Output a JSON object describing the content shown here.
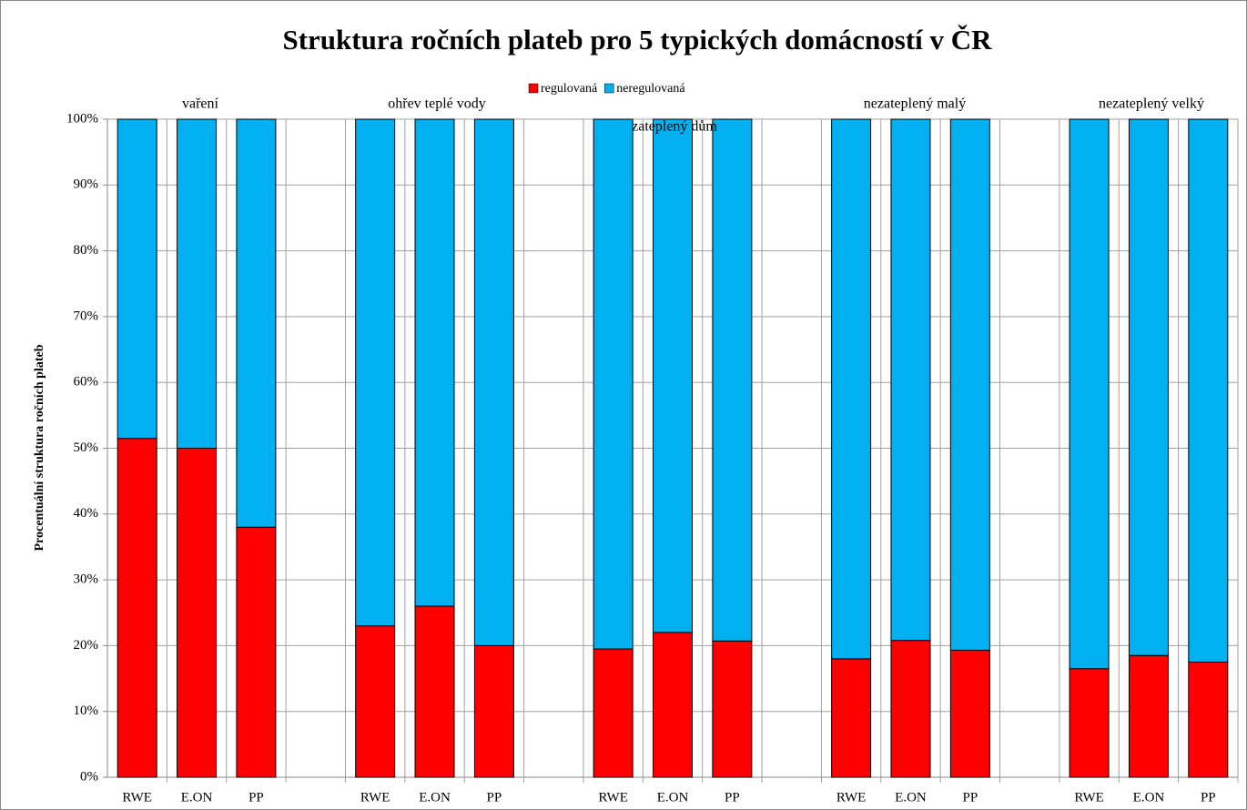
{
  "chart_data": {
    "type": "stacked_bar",
    "title": "Struktura ročních plateb pro 5 typických domácností v ČR",
    "y_label": "Procentuální struktura  ročních plateb",
    "annotations": [
      "vaření",
      "ohřev teplé vody",
      "zateplený dům",
      "nezateplený malý",
      "nezateplený velký"
    ],
    "categories": [
      "RWE",
      "E.ON",
      "PP",
      null,
      "RWE",
      "E.ON",
      "PP",
      null,
      "RWE",
      "E.ON",
      "PP",
      null,
      "RWE",
      "E.ON",
      "PP",
      null,
      "RWE",
      "E.ON",
      "PP"
    ],
    "series": [
      {
        "name": "regulovaná",
        "color": "#ff0000",
        "values": [
          51.5,
          50,
          38,
          null,
          23,
          26,
          20,
          null,
          19.5,
          22,
          20.7,
          null,
          18,
          20.8,
          19.3,
          null,
          16.5,
          18.5,
          17.5
        ]
      },
      {
        "name": "neregulovaná",
        "color": "#00b0f0",
        "values": [
          48.5,
          50,
          62,
          null,
          77,
          74,
          80,
          null,
          80.5,
          78,
          79.3,
          null,
          82,
          79.2,
          80.7,
          null,
          83.5,
          81.5,
          82.5
        ]
      }
    ],
    "ylim": [
      0,
      100
    ],
    "yticks": [
      {
        "value": 0,
        "label": "0%"
      },
      {
        "value": 10,
        "label": "10%"
      },
      {
        "value": 20,
        "label": "20%"
      },
      {
        "value": 30,
        "label": "30%"
      },
      {
        "value": 40,
        "label": "40%"
      },
      {
        "value": 50,
        "label": "50%"
      },
      {
        "value": 60,
        "label": "60%"
      },
      {
        "value": 70,
        "label": "70%"
      },
      {
        "value": 80,
        "label": "80%"
      },
      {
        "value": 90,
        "label": "90%"
      },
      {
        "value": 100,
        "label": "100%"
      }
    ],
    "grid": true,
    "legend": "top"
  }
}
